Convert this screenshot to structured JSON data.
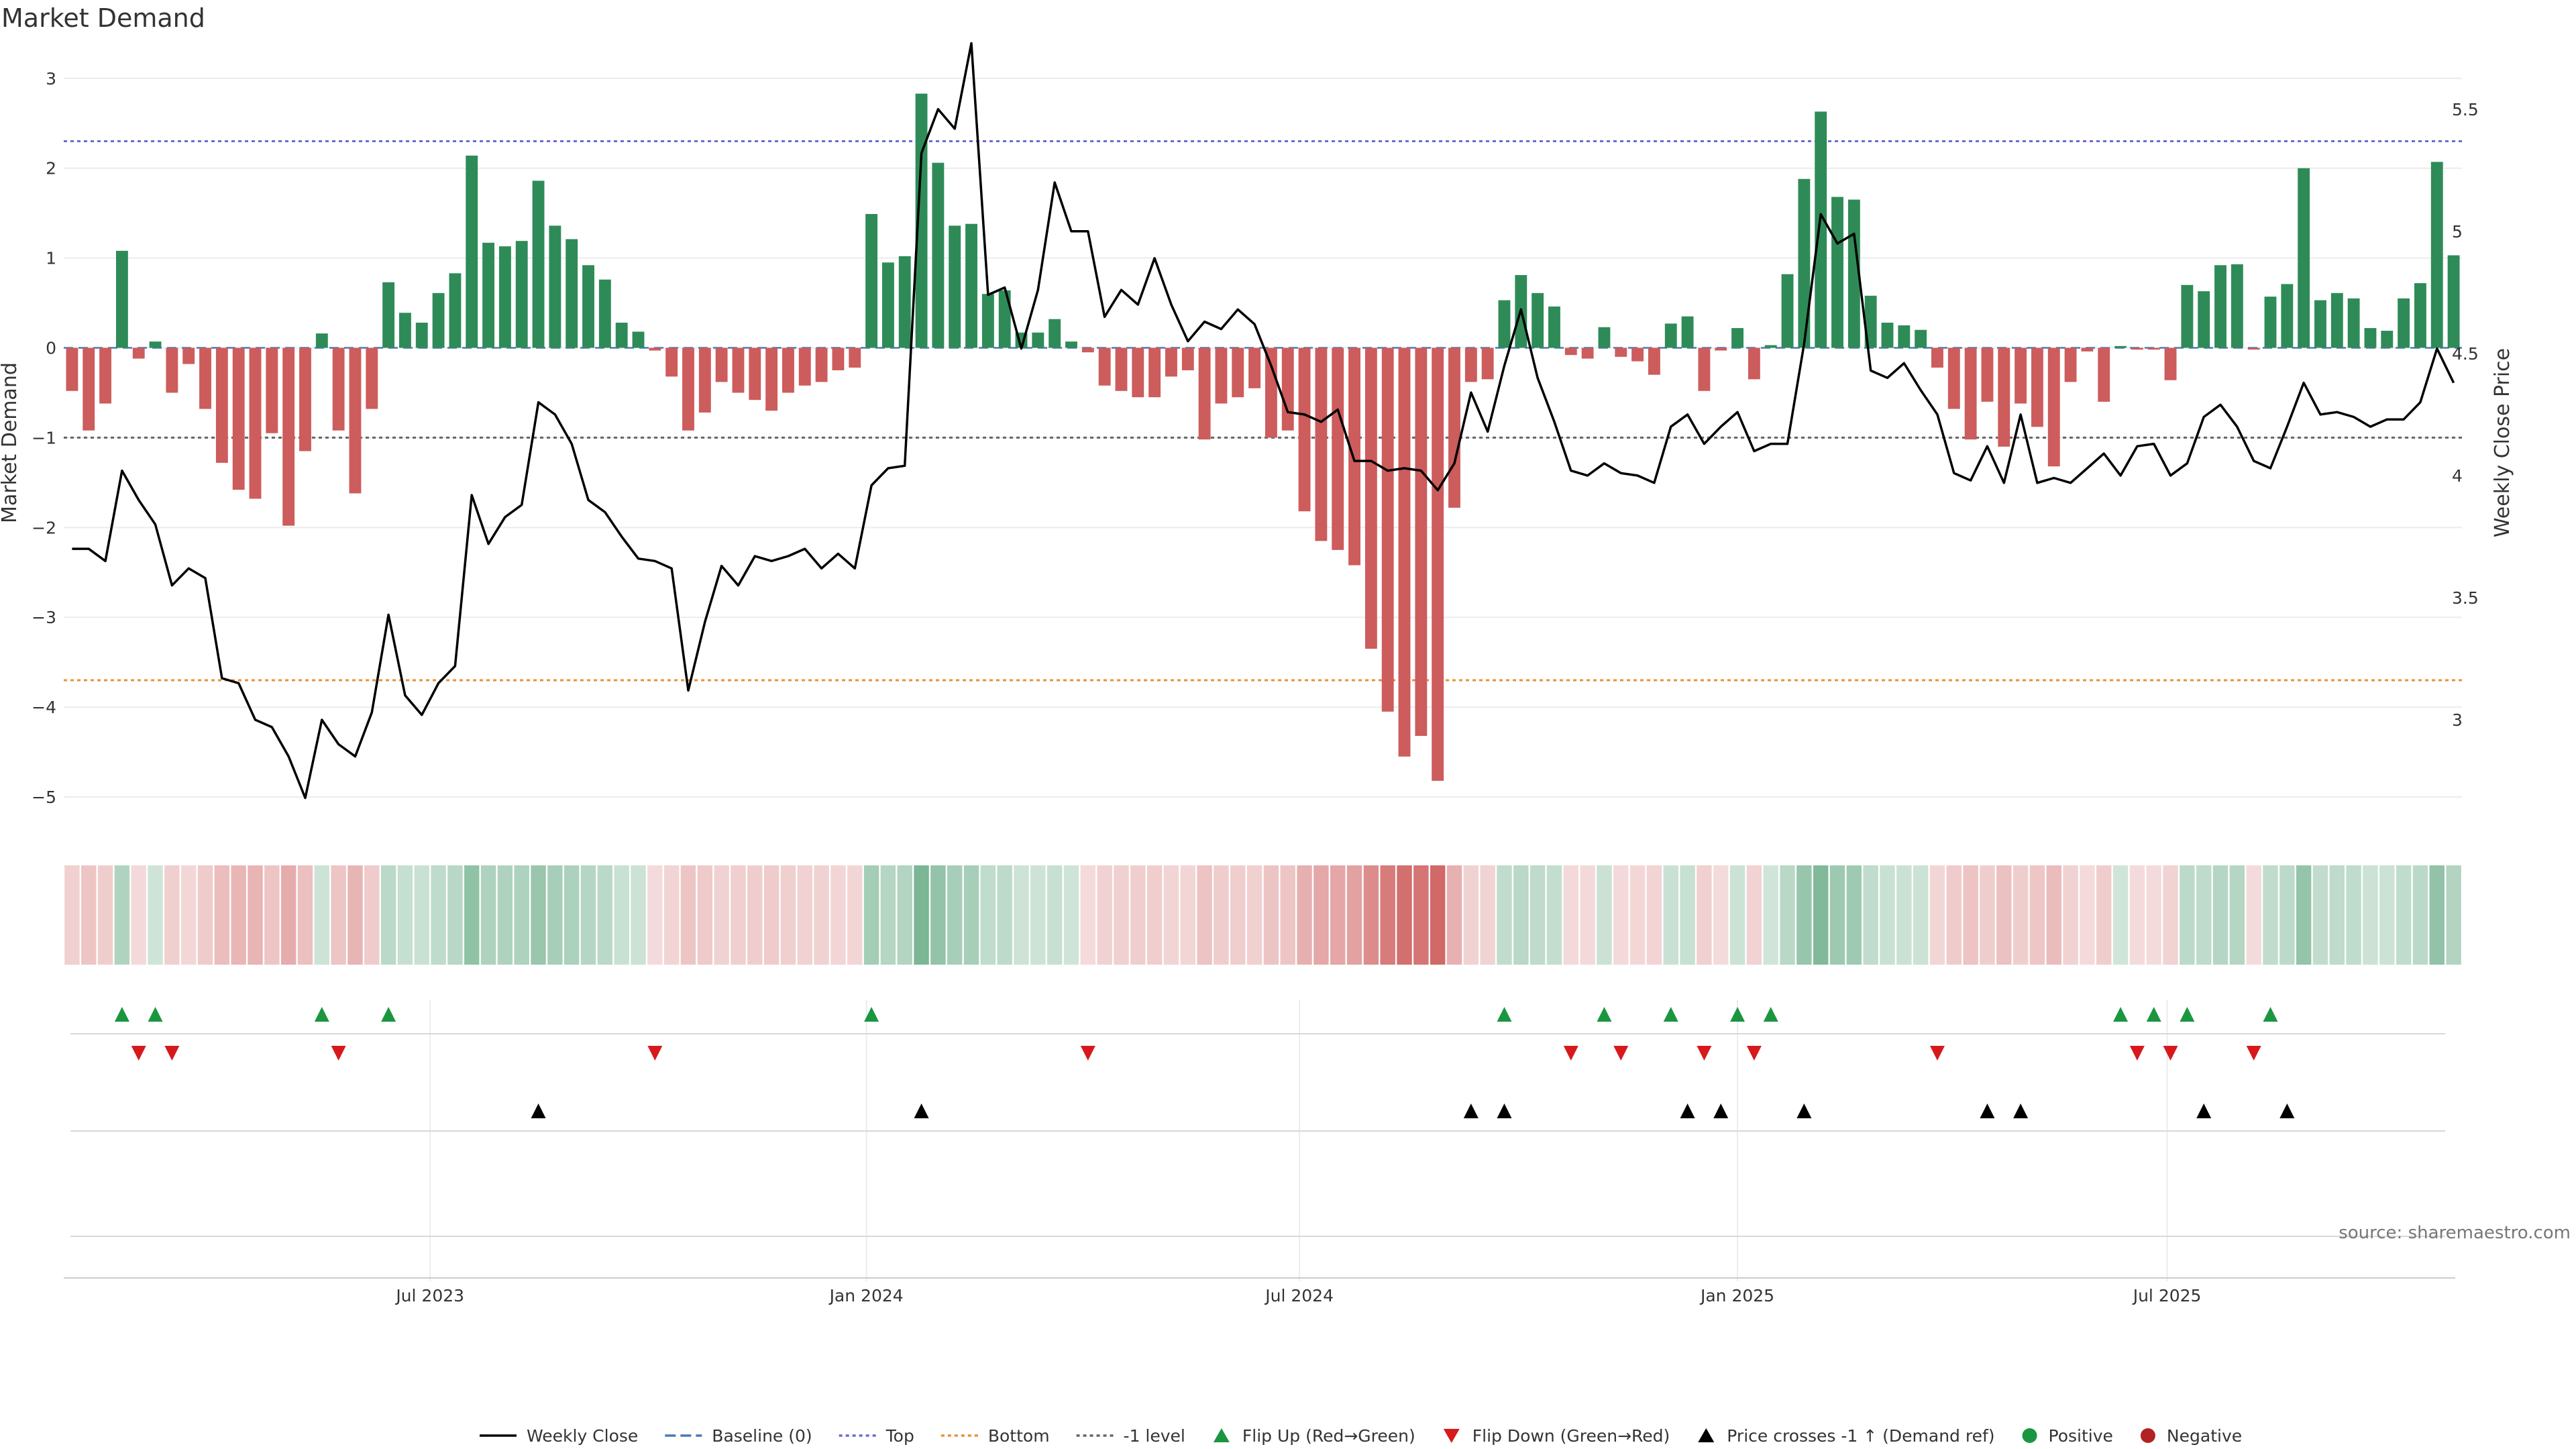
{
  "chart_data": {
    "type": "bar",
    "title": "Market Demand",
    "ylabel": "Market Demand",
    "y2label": "Weekly Close Price",
    "source": "source: sharemaestro.com",
    "ylim": [
      -5.5,
      3.2
    ],
    "y2lim": [
      2.5,
      5.7
    ],
    "yticks": [
      -5,
      -4,
      -3,
      -2,
      -1,
      0,
      1,
      2,
      3
    ],
    "ytick_labels": [
      "−5",
      "−4",
      "−3",
      "−2",
      "−1",
      "0",
      "1",
      "2",
      "3"
    ],
    "y2ticks": [
      3,
      3.5,
      4,
      4.5,
      5,
      5.5
    ],
    "y2tick_labels": [
      "3",
      "3.5",
      "4",
      "4.5",
      "5",
      "5.5"
    ],
    "x_start": "2023-01-06",
    "xticks": [
      {
        "label": "Jul 2023",
        "week": 21.5
      },
      {
        "label": "Jan 2024",
        "week": 47.7
      },
      {
        "label": "Jul 2024",
        "week": 73.7
      },
      {
        "label": "Jan 2025",
        "week": 100.0
      },
      {
        "label": "Jul 2025",
        "week": 125.8
      }
    ],
    "reference_lines": [
      {
        "name": "Top",
        "value": 2.3,
        "color": "#6b6bd6",
        "style": "dotted"
      },
      {
        "name": "Bottom",
        "value": -3.7,
        "color": "#e8913a",
        "style": "dotted"
      },
      {
        "name": "-1 level",
        "value": -1,
        "color": "#666666",
        "style": "dotted"
      }
    ],
    "colors": {
      "positive": "#2e8b57",
      "negative": "#cd5c5c",
      "close": "#000000",
      "flip_up": "#1a9641",
      "flip_down": "#d7191c",
      "cross": "#000000"
    },
    "demand": [
      -0.48,
      -0.92,
      -0.62,
      1.08,
      -0.12,
      0.07,
      -0.5,
      -0.18,
      -0.68,
      -1.28,
      -1.58,
      -1.68,
      -0.95,
      -1.98,
      -1.15,
      0.16,
      -0.92,
      -1.62,
      -0.68,
      0.73,
      0.39,
      0.28,
      0.61,
      0.83,
      2.14,
      1.17,
      1.13,
      1.19,
      1.86,
      1.36,
      1.21,
      0.92,
      0.76,
      0.28,
      0.18,
      -0.03,
      -0.32,
      -0.92,
      -0.72,
      -0.38,
      -0.5,
      -0.58,
      -0.7,
      -0.5,
      -0.42,
      -0.38,
      -0.25,
      -0.22,
      1.49,
      0.95,
      1.02,
      2.83,
      2.06,
      1.36,
      1.38,
      0.6,
      0.64,
      0.17,
      0.17,
      0.32,
      0.07,
      -0.05,
      -0.42,
      -0.48,
      -0.55,
      -0.55,
      -0.32,
      -0.25,
      -1.02,
      -0.62,
      -0.55,
      -0.45,
      -1.0,
      -0.92,
      -1.82,
      -2.15,
      -2.25,
      -2.42,
      -3.35,
      -4.05,
      -4.55,
      -4.32,
      -4.82,
      -1.78,
      -0.38,
      -0.35,
      0.53,
      0.81,
      0.61,
      0.46,
      -0.08,
      -0.12,
      0.23,
      -0.1,
      -0.15,
      -0.3,
      0.27,
      0.35,
      -0.48,
      -0.03,
      0.22,
      -0.35,
      0.03,
      0.82,
      1.88,
      2.63,
      1.68,
      1.65,
      0.58,
      0.28,
      0.25,
      0.2,
      -0.22,
      -0.68,
      -1.02,
      -0.6,
      -1.1,
      -0.62,
      -0.88,
      -1.32,
      -0.38,
      -0.04,
      -0.6,
      0.02,
      -0.02,
      -0.02,
      -0.36,
      0.7,
      0.63,
      0.92,
      0.93,
      -0.02,
      0.57,
      0.71,
      2.0,
      0.53,
      0.61,
      0.55,
      0.22,
      0.19,
      0.55,
      0.72,
      2.07,
      1.03
    ],
    "close": [
      3.7,
      3.7,
      3.65,
      4.02,
      3.9,
      3.8,
      3.55,
      3.62,
      3.58,
      3.17,
      3.15,
      3.0,
      2.97,
      2.85,
      2.68,
      3.0,
      2.9,
      2.85,
      3.03,
      3.43,
      3.1,
      3.02,
      3.15,
      3.22,
      3.92,
      3.72,
      3.83,
      3.88,
      4.3,
      4.25,
      4.13,
      3.9,
      3.85,
      3.75,
      3.66,
      3.65,
      3.62,
      3.12,
      3.4,
      3.63,
      3.55,
      3.67,
      3.65,
      3.67,
      3.7,
      3.62,
      3.68,
      3.62,
      3.96,
      4.03,
      4.04,
      5.32,
      5.5,
      5.42,
      5.77,
      4.74,
      4.77,
      4.52,
      4.76,
      5.2,
      5.0,
      5.0,
      4.65,
      4.76,
      4.7,
      4.89,
      4.7,
      4.55,
      4.63,
      4.6,
      4.68,
      4.62,
      4.45,
      4.26,
      4.25,
      4.22,
      4.27,
      4.06,
      4.06,
      4.02,
      4.03,
      4.02,
      3.94,
      4.05,
      4.34,
      4.18,
      4.45,
      4.68,
      4.4,
      4.22,
      4.02,
      4.0,
      4.05,
      4.01,
      4.0,
      3.97,
      4.2,
      4.25,
      4.13,
      4.2,
      4.26,
      4.1,
      4.13,
      4.13,
      4.54,
      5.07,
      4.95,
      4.99,
      4.43,
      4.4,
      4.46,
      4.35,
      4.25,
      4.01,
      3.98,
      4.12,
      3.97,
      4.25,
      3.97,
      3.99,
      3.97,
      4.03,
      4.09,
      4.0,
      4.12,
      4.13,
      4.0,
      4.05,
      4.24,
      4.29,
      4.2,
      4.06,
      4.03,
      4.2,
      4.38,
      4.25,
      4.26,
      4.24,
      4.2,
      4.23,
      4.23,
      4.3,
      4.52,
      4.38
    ],
    "flip_up_weeks": [
      3,
      5,
      15,
      19,
      48,
      86,
      92,
      96,
      100,
      102,
      123,
      125,
      127,
      132
    ],
    "flip_down_weeks": [
      4,
      6,
      16,
      35,
      61,
      90,
      93,
      98,
      101,
      112,
      124,
      126,
      131
    ],
    "price_cross_weeks": [
      28,
      51,
      84,
      86,
      97,
      99,
      104,
      115,
      117,
      128,
      133
    ],
    "legend": [
      {
        "label": "Weekly Close",
        "marker": "solid-line",
        "color": "#000000"
      },
      {
        "label": "Baseline (0)",
        "marker": "dashed-line",
        "color": "#4a7ab8"
      },
      {
        "label": "Top",
        "marker": "dotted-line",
        "color": "#6b6bd6"
      },
      {
        "label": "Bottom",
        "marker": "dotted-line",
        "color": "#e8913a"
      },
      {
        "label": "-1 level",
        "marker": "dotted-line",
        "color": "#666666"
      },
      {
        "label": "Flip Up (Red→Green)",
        "marker": "triangle-up",
        "color": "#1a9641"
      },
      {
        "label": "Flip Down (Green→Red)",
        "marker": "triangle-down",
        "color": "#d7191c"
      },
      {
        "label": "Price crosses -1 ↑ (Demand ref)",
        "marker": "triangle-up",
        "color": "#000000"
      },
      {
        "label": "Positive",
        "marker": "circle",
        "color": "#1a9641"
      },
      {
        "label": "Negative",
        "marker": "circle",
        "color": "#b22222"
      }
    ],
    "legend_position": "bottom",
    "grid": true
  }
}
